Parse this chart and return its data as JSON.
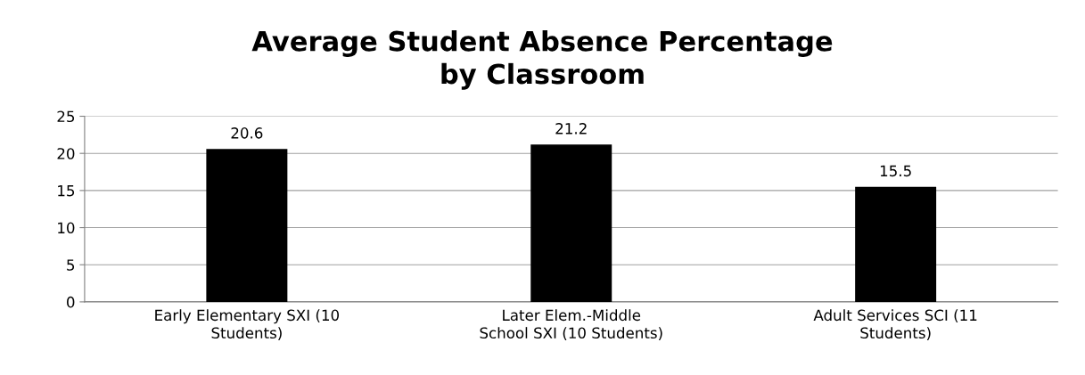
{
  "chart_data": {
    "type": "bar",
    "title": "Average Student Absence Percentage\nby Classroom",
    "categories": [
      "Early Elementary SXI (10\nStudents)",
      "Later Elem.-Middle\nSchool SXI (10 Students)",
      "Adult Services SCI (11\nStudents)"
    ],
    "values": [
      20.6,
      21.2,
      15.5
    ],
    "color": "#000000",
    "ylim": [
      0,
      25
    ],
    "yticks": [
      0,
      5,
      10,
      15,
      20,
      25
    ],
    "grid": "y",
    "data_labels": true,
    "legend": false
  }
}
